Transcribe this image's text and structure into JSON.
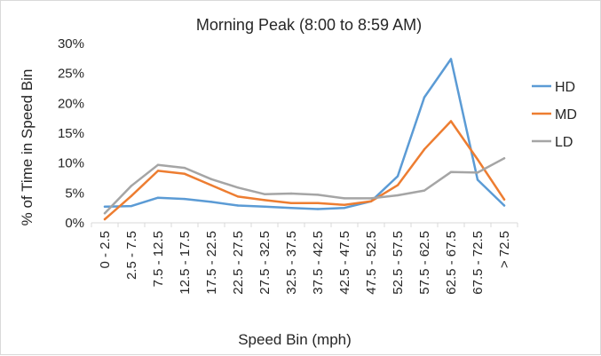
{
  "chart_data": {
    "type": "line",
    "title": "Morning Peak (8:00 to 8:59 AM)",
    "xlabel": "Speed Bin (mph)",
    "ylabel": "% of Time in Speed Bin",
    "categories": [
      "0 - 2.5",
      "2.5 - 7.5",
      "7.5 - 12.5",
      "12.5 - 17.5",
      "17.5 - 22.5",
      "22.5 - 27.5",
      "27.5 - 32.5",
      "32.5 - 37.5",
      "37.5 - 42.5",
      "42.5 - 47.5",
      "47.5 - 52.5",
      "52.5 - 57.5",
      "57.5 - 62.5",
      "62.5 - 67.5",
      "67.5 - 72.5",
      "> 72.5"
    ],
    "ylim": [
      0,
      30
    ],
    "yticks": [
      "0%",
      "5%",
      "10%",
      "15%",
      "20%",
      "25%",
      "30%"
    ],
    "grid": false,
    "legend_position": "right",
    "series": [
      {
        "name": "HD",
        "color": "#5b9bd5",
        "values": [
          2.7,
          2.8,
          4.2,
          4.0,
          3.5,
          2.9,
          2.7,
          2.5,
          2.3,
          2.5,
          3.6,
          7.8,
          21.0,
          27.4,
          7.2,
          2.9
        ]
      },
      {
        "name": "MD",
        "color": "#ed7d31",
        "values": [
          0.6,
          4.5,
          8.7,
          8.2,
          6.3,
          4.4,
          3.8,
          3.3,
          3.3,
          3.0,
          3.6,
          6.3,
          12.3,
          17.0,
          10.6,
          3.9
        ]
      },
      {
        "name": "LD",
        "color": "#a5a5a5",
        "values": [
          1.6,
          6.2,
          9.7,
          9.2,
          7.3,
          5.9,
          4.8,
          4.9,
          4.7,
          4.1,
          4.1,
          4.6,
          5.4,
          8.5,
          8.4,
          10.8
        ]
      }
    ]
  }
}
